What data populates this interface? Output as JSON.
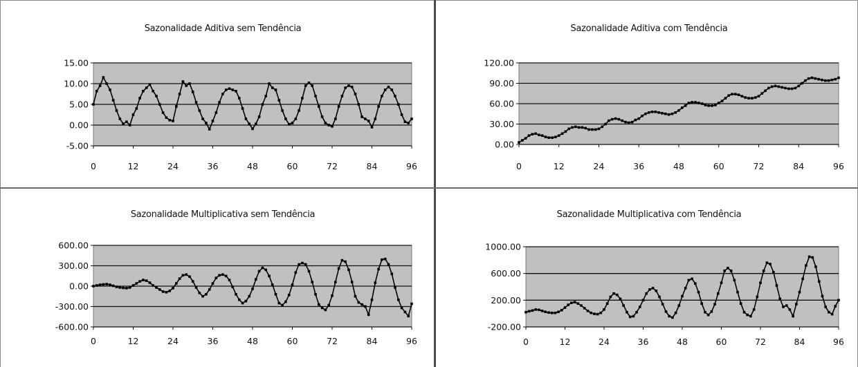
{
  "chart_data": [
    {
      "type": "line",
      "title": "Sazonalidade Aditiva sem Tendência",
      "xticks": [
        "0",
        "12",
        "24",
        "36",
        "48",
        "60",
        "72",
        "84",
        "96"
      ],
      "yticks": [
        "15.00",
        "10.00",
        "5.00",
        "0.00",
        "-5.00"
      ],
      "xlim": [
        0,
        96
      ],
      "ylim": [
        -5,
        15
      ],
      "grid": "horizontal",
      "series": [
        {
          "values": [
            5.0,
            8.2,
            9.5,
            11.5,
            10.0,
            8.5,
            6.0,
            3.5,
            1.5,
            0.3,
            0.8,
            0.0,
            2.5,
            4.0,
            6.5,
            8.2,
            9.0,
            9.8,
            8.2,
            7.0,
            5.0,
            3.0,
            1.8,
            1.2,
            1.0,
            4.5,
            7.5,
            10.5,
            9.5,
            10.0,
            8.0,
            5.5,
            3.5,
            1.5,
            0.5,
            -1.0,
            1.0,
            3.0,
            5.5,
            7.5,
            8.5,
            8.8,
            8.5,
            8.2,
            6.5,
            4.0,
            1.5,
            0.3,
            -0.9,
            0.3,
            2.0,
            5.0,
            7.0,
            10.0,
            9.0,
            8.5,
            6.0,
            3.5,
            1.5,
            0.2,
            0.5,
            1.5,
            3.5,
            6.5,
            9.5,
            10.2,
            9.5,
            7.0,
            4.5,
            2.0,
            0.5,
            0.0,
            -0.3,
            1.5,
            4.5,
            7.0,
            9.0,
            9.5,
            9.2,
            7.5,
            5.0,
            2.0,
            1.5,
            1.0,
            -0.5,
            1.5,
            4.5,
            7.0,
            8.5,
            9.2,
            8.5,
            7.0,
            5.0,
            2.5,
            0.8,
            0.5,
            1.5
          ]
        }
      ]
    },
    {
      "type": "line",
      "title": "Sazonalidade Aditiva com Tendência",
      "xticks": [
        "0",
        "12",
        "24",
        "36",
        "48",
        "60",
        "72",
        "84",
        "96"
      ],
      "yticks": [
        "120.00",
        "90.00",
        "60.00",
        "30.00",
        "0.00"
      ],
      "xlim": [
        0,
        96
      ],
      "ylim": [
        0,
        120
      ],
      "grid": "horizontal",
      "series": [
        {
          "values": [
            3,
            6,
            9,
            13,
            15,
            16,
            14,
            13,
            11,
            10,
            10,
            11,
            13,
            16,
            19,
            23,
            25,
            26,
            25,
            25,
            24,
            22,
            22,
            22,
            23,
            26,
            30,
            35,
            37,
            38,
            37,
            35,
            33,
            32,
            33,
            36,
            38,
            42,
            45,
            47,
            48,
            48,
            47,
            46,
            45,
            44,
            45,
            47,
            50,
            54,
            57,
            61,
            62,
            62,
            61,
            60,
            58,
            57,
            57,
            58,
            61,
            64,
            68,
            72,
            74,
            74,
            73,
            71,
            69,
            68,
            68,
            69,
            71,
            75,
            79,
            83,
            85,
            86,
            85,
            84,
            83,
            82,
            82,
            83,
            86,
            90,
            94,
            97,
            98,
            97,
            96,
            95,
            94,
            94,
            95,
            96,
            98
          ]
        }
      ]
    },
    {
      "type": "line",
      "title": "Sazonalidade Multiplicativa sem Tendência",
      "xticks": [
        "0",
        "12",
        "24",
        "36",
        "48",
        "60",
        "72",
        "84",
        "96"
      ],
      "yticks": [
        "600.00",
        "300.00",
        "0.00",
        "-300.00",
        "-600.00"
      ],
      "xlim": [
        0,
        96
      ],
      "ylim": [
        -600,
        600
      ],
      "grid": "horizontal",
      "series": [
        {
          "values": [
            0,
            10,
            20,
            25,
            30,
            20,
            5,
            -10,
            -20,
            -25,
            -30,
            -20,
            10,
            40,
            70,
            90,
            80,
            50,
            10,
            -20,
            -50,
            -80,
            -90,
            -70,
            -30,
            40,
            110,
            160,
            170,
            140,
            70,
            -20,
            -100,
            -150,
            -120,
            -50,
            40,
            120,
            160,
            170,
            150,
            90,
            -10,
            -120,
            -200,
            -250,
            -220,
            -150,
            -40,
            100,
            220,
            270,
            240,
            150,
            20,
            -120,
            -250,
            -280,
            -230,
            -130,
            20,
            200,
            320,
            340,
            320,
            220,
            60,
            -120,
            -270,
            -320,
            -350,
            -280,
            -140,
            60,
            260,
            380,
            360,
            240,
            60,
            -150,
            -240,
            -270,
            -300,
            -420,
            -200,
            50,
            250,
            390,
            400,
            320,
            180,
            -20,
            -200,
            -320,
            -380,
            -440,
            -260
          ]
        }
      ]
    },
    {
      "type": "line",
      "title": "Sazonalidade Multiplicativa com Tendência",
      "xticks": [
        "0",
        "12",
        "24",
        "36",
        "48",
        "60",
        "72",
        "84",
        "96"
      ],
      "yticks": [
        "1000.00",
        "600.00",
        "200.00",
        "-200.00"
      ],
      "xlim": [
        0,
        96
      ],
      "ylim": [
        -200,
        1000
      ],
      "grid": "horizontal",
      "series": [
        {
          "values": [
            20,
            35,
            45,
            60,
            55,
            40,
            25,
            15,
            10,
            10,
            25,
            50,
            90,
            130,
            160,
            170,
            150,
            120,
            80,
            40,
            10,
            -5,
            -10,
            10,
            60,
            150,
            250,
            300,
            280,
            220,
            120,
            20,
            -50,
            -40,
            20,
            100,
            200,
            300,
            360,
            380,
            340,
            250,
            140,
            30,
            -40,
            -60,
            10,
            120,
            260,
            380,
            500,
            520,
            450,
            320,
            150,
            20,
            -20,
            30,
            140,
            300,
            460,
            640,
            680,
            640,
            500,
            320,
            150,
            20,
            -20,
            -40,
            60,
            250,
            460,
            640,
            760,
            740,
            620,
            420,
            220,
            100,
            120,
            60,
            -40,
            140,
            320,
            520,
            720,
            850,
            840,
            700,
            480,
            260,
            100,
            20,
            -10,
            110,
            200
          ]
        }
      ]
    }
  ]
}
